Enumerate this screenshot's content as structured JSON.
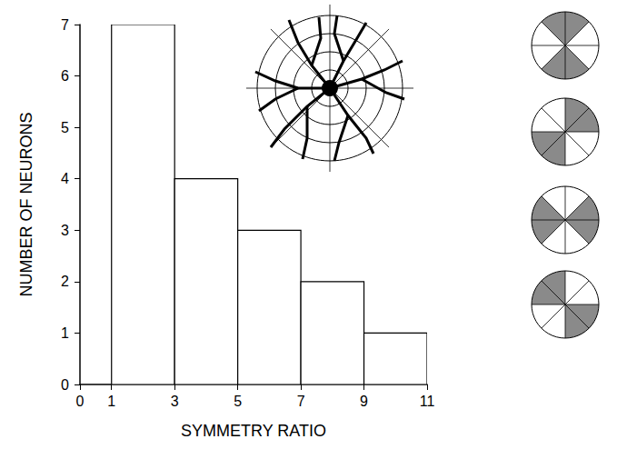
{
  "chart_data": {
    "type": "histogram",
    "bins": [
      1,
      3,
      5,
      7,
      9,
      11
    ],
    "counts": [
      7,
      4,
      3,
      2,
      1
    ],
    "color": "#ffffff",
    "xlabel": "SYMMETRY RATIO",
    "ylabel": "NUMBER OF NEURONS",
    "xlim": [
      0,
      11
    ],
    "xticks": [
      0,
      1,
      3,
      5,
      7,
      9,
      11
    ],
    "ylim": [
      0,
      7
    ],
    "yticks": [
      0,
      1,
      2,
      3,
      4,
      5,
      6,
      7
    ],
    "grid": false
  }
}
